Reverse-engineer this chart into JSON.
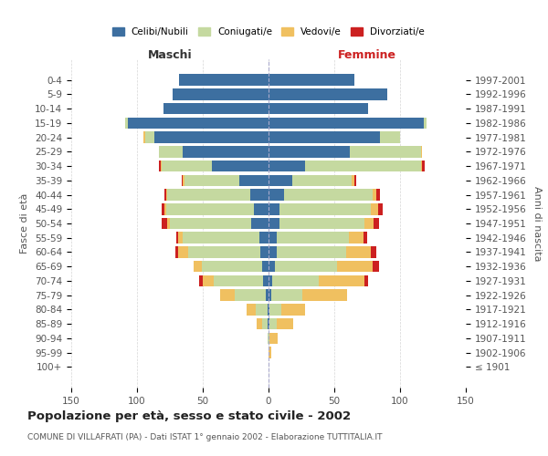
{
  "age_groups": [
    "100+",
    "95-99",
    "90-94",
    "85-89",
    "80-84",
    "75-79",
    "70-74",
    "65-69",
    "60-64",
    "55-59",
    "50-54",
    "45-49",
    "40-44",
    "35-39",
    "30-34",
    "25-29",
    "20-24",
    "15-19",
    "10-14",
    "5-9",
    "0-4"
  ],
  "birth_years": [
    "≤ 1901",
    "1902-1906",
    "1907-1911",
    "1912-1916",
    "1917-1921",
    "1922-1926",
    "1927-1931",
    "1932-1936",
    "1937-1941",
    "1942-1946",
    "1947-1951",
    "1952-1956",
    "1957-1961",
    "1962-1966",
    "1967-1971",
    "1972-1976",
    "1977-1981",
    "1982-1986",
    "1987-1991",
    "1992-1996",
    "1997-2001"
  ],
  "maschi": {
    "celibi": [
      0,
      0,
      0,
      1,
      1,
      2,
      4,
      5,
      6,
      7,
      13,
      11,
      14,
      22,
      43,
      65,
      87,
      107,
      80,
      73,
      68
    ],
    "coniugati": [
      0,
      0,
      1,
      4,
      9,
      24,
      38,
      46,
      55,
      58,
      62,
      67,
      63,
      42,
      38,
      18,
      7,
      2,
      0,
      0,
      0
    ],
    "vedovi": [
      0,
      0,
      0,
      4,
      7,
      11,
      8,
      6,
      8,
      4,
      2,
      1,
      1,
      1,
      1,
      0,
      1,
      0,
      0,
      0,
      0
    ],
    "divorziati": [
      0,
      0,
      0,
      0,
      0,
      0,
      3,
      0,
      2,
      1,
      4,
      2,
      1,
      1,
      1,
      0,
      0,
      0,
      0,
      0,
      0
    ]
  },
  "femmine": {
    "nubili": [
      0,
      0,
      0,
      1,
      1,
      2,
      3,
      5,
      6,
      6,
      8,
      8,
      12,
      18,
      28,
      62,
      85,
      118,
      76,
      90,
      65
    ],
    "coniugate": [
      0,
      0,
      1,
      5,
      9,
      24,
      35,
      47,
      53,
      55,
      65,
      70,
      67,
      45,
      88,
      54,
      15,
      2,
      0,
      0,
      0
    ],
    "vedove": [
      0,
      2,
      6,
      13,
      18,
      34,
      35,
      27,
      19,
      11,
      7,
      5,
      3,
      2,
      1,
      1,
      0,
      0,
      0,
      0,
      0
    ],
    "divorziate": [
      0,
      0,
      0,
      0,
      0,
      0,
      3,
      5,
      4,
      3,
      4,
      4,
      3,
      2,
      2,
      0,
      0,
      0,
      0,
      0,
      0
    ]
  },
  "colors": {
    "celibi_nubili": "#3d6fa0",
    "coniugati": "#c5d9a0",
    "vedovi": "#f0c060",
    "divorziati": "#cc2020"
  },
  "xlim": 150,
  "title": "Popolazione per età, sesso e stato civile - 2002",
  "subtitle": "COMUNE DI VILLAFRATI (PA) - Dati ISTAT 1° gennaio 2002 - Elaborazione TUTTITALIA.IT",
  "ylabel_left": "Fasce di età",
  "ylabel_right": "Anni di nascita",
  "xlabel_maschi": "Maschi",
  "xlabel_femmine": "Femmine",
  "background_color": "#ffffff",
  "grid_color": "#cccccc"
}
